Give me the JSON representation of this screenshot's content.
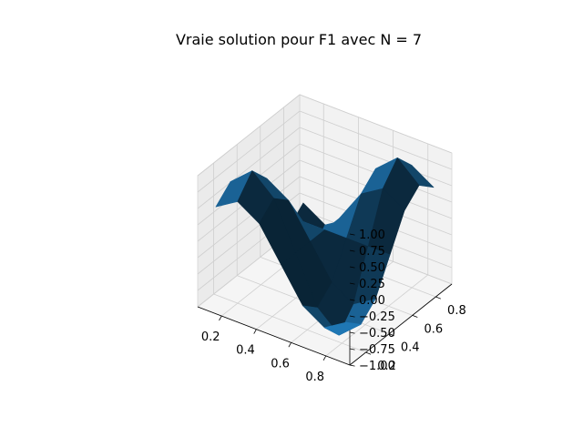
{
  "chart_data": {
    "type": "surface",
    "title": "Vraie solution pour F1 avec N = 7",
    "x_ticks": [
      "0.2",
      "0.4",
      "0.6",
      "0.8"
    ],
    "y_ticks": [
      "0.2",
      "0.4",
      "0.6",
      "0.8"
    ],
    "z_ticks": [
      "1.00",
      "0.75",
      "0.50",
      "0.25",
      "0.00",
      "−0.25",
      "−0.50",
      "−0.75",
      "−1.00"
    ],
    "zlim": [
      -1,
      1
    ],
    "x": [
      0.125,
      0.25,
      0.375,
      0.5,
      0.625,
      0.75,
      0.875
    ],
    "y": [
      0.125,
      0.25,
      0.375,
      0.5,
      0.625,
      0.75,
      0.875
    ],
    "z_function": "sin(2*pi*x) * sin(2*pi*y)",
    "surface_color": "#1f77b4",
    "pane_color": "#f2f2f2",
    "grid": true
  }
}
